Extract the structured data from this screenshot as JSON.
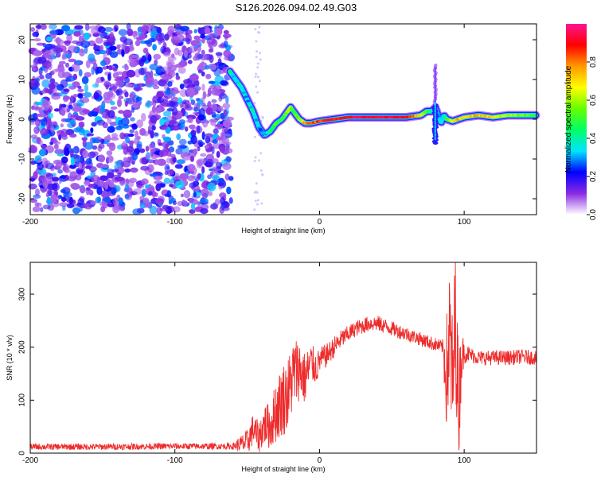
{
  "figure_title": "S126.2026.094.02.49.G03",
  "chart_data": [
    {
      "type": "heatmap",
      "title": "",
      "xlabel": "Height of straight line (km)",
      "ylabel": "Frequency (Hz)",
      "xlim": [
        -200,
        150
      ],
      "ylim": [
        -24,
        24
      ],
      "xticks": [
        -200,
        -100,
        0,
        100
      ],
      "xtick_labels": [
        "-200",
        "-100",
        "0",
        "100"
      ],
      "yticks": [
        20,
        10,
        0,
        -10,
        -20
      ],
      "ytick_labels": [
        "20",
        "10",
        "0",
        "-10",
        "-20"
      ],
      "noise_region_x": [
        -200,
        -60
      ],
      "ridge": {
        "x": [
          -62,
          -58,
          -54,
          -50,
          -46,
          -42,
          -38,
          -34,
          -30,
          -26,
          -22,
          -20,
          -18,
          -14,
          -10,
          -6,
          0,
          10,
          20,
          30,
          40,
          50,
          60,
          70,
          74,
          78,
          80,
          82,
          84,
          86,
          88,
          92,
          96,
          100,
          110,
          120,
          130,
          140,
          150
        ],
        "y": [
          12,
          10,
          8,
          5,
          2,
          -2,
          -4,
          -3,
          -1,
          0,
          2,
          3,
          2,
          0,
          -1,
          -1,
          -0.5,
          0,
          0.5,
          0.5,
          0.5,
          0.5,
          0.5,
          1,
          2,
          2,
          3,
          1,
          -1,
          1,
          0,
          -0.5,
          0,
          0.5,
          1,
          0.5,
          1,
          1,
          1
        ],
        "amplitude": [
          0.4,
          0.3,
          0.4,
          0.3,
          0.4,
          0.3,
          0.3,
          0.4,
          0.5,
          0.5,
          0.6,
          0.6,
          0.5,
          0.6,
          0.75,
          0.8,
          0.85,
          0.9,
          0.9,
          0.95,
          0.9,
          0.95,
          0.9,
          0.7,
          0.5,
          0.4,
          0.4,
          0.3,
          0.3,
          0.4,
          0.5,
          0.7,
          0.75,
          0.7,
          0.75,
          0.7,
          0.6,
          0.55,
          0.5
        ]
      },
      "spike": {
        "x": 80,
        "y_range": [
          -6,
          14
        ]
      }
    },
    {
      "type": "line",
      "title": "",
      "xlabel": "Height of straight line (km)",
      "ylabel": "SNR (10 * v/v)",
      "xlim": [
        -200,
        150
      ],
      "ylim": [
        0,
        360
      ],
      "xticks": [
        -200,
        -100,
        0,
        100
      ],
      "xtick_labels": [
        "-200",
        "-100",
        "0",
        "100"
      ],
      "yticks": [
        0,
        100,
        200,
        300
      ],
      "ytick_labels": [
        "0",
        "100",
        "200",
        "300"
      ],
      "series": [
        {
          "name": "SNR",
          "color": "#ee2b2b",
          "x": [
            -200,
            -150,
            -100,
            -60,
            -50,
            -46,
            -42,
            -38,
            -34,
            -30,
            -26,
            -22,
            -18,
            -14,
            -10,
            -6,
            -2,
            0,
            5,
            10,
            15,
            20,
            25,
            30,
            35,
            40,
            45,
            50,
            55,
            60,
            65,
            70,
            75,
            80,
            85,
            88,
            90,
            92,
            94,
            96,
            98,
            100,
            105,
            110,
            120,
            130,
            140,
            150
          ],
          "y": [
            12,
            12,
            13,
            13,
            20,
            45,
            30,
            55,
            50,
            80,
            100,
            110,
            150,
            160,
            140,
            170,
            160,
            175,
            185,
            200,
            215,
            225,
            235,
            240,
            245,
            245,
            240,
            235,
            230,
            225,
            220,
            215,
            210,
            205,
            200,
            150,
            230,
            120,
            260,
            80,
            180,
            190,
            185,
            180,
            180,
            180,
            182,
            180
          ],
          "noise_amplitude": [
            6,
            6,
            6,
            6,
            25,
            30,
            30,
            40,
            45,
            60,
            70,
            70,
            70,
            60,
            50,
            40,
            30,
            25,
            22,
            20,
            18,
            16,
            15,
            15,
            15,
            15,
            15,
            14,
            14,
            14,
            13,
            13,
            13,
            13,
            13,
            120,
            130,
            140,
            140,
            120,
            60,
            20,
            14,
            14,
            14,
            14,
            14,
            14
          ]
        }
      ]
    },
    {
      "type": "colorbar",
      "label": "Normalized spectral amplitude",
      "range": [
        0,
        1
      ],
      "ticks": [
        0,
        0.2,
        0.4,
        0.6,
        0.8
      ],
      "tick_labels": [
        "0.0",
        "0.2",
        "0.4",
        "0.6",
        "0.8"
      ],
      "colors": [
        "#ffffff",
        "#8a2be2",
        "#0000ff",
        "#00e5ff",
        "#00ff66",
        "#66ff00",
        "#ffff00",
        "#ff9900",
        "#ff0000",
        "#ff1493"
      ]
    }
  ]
}
